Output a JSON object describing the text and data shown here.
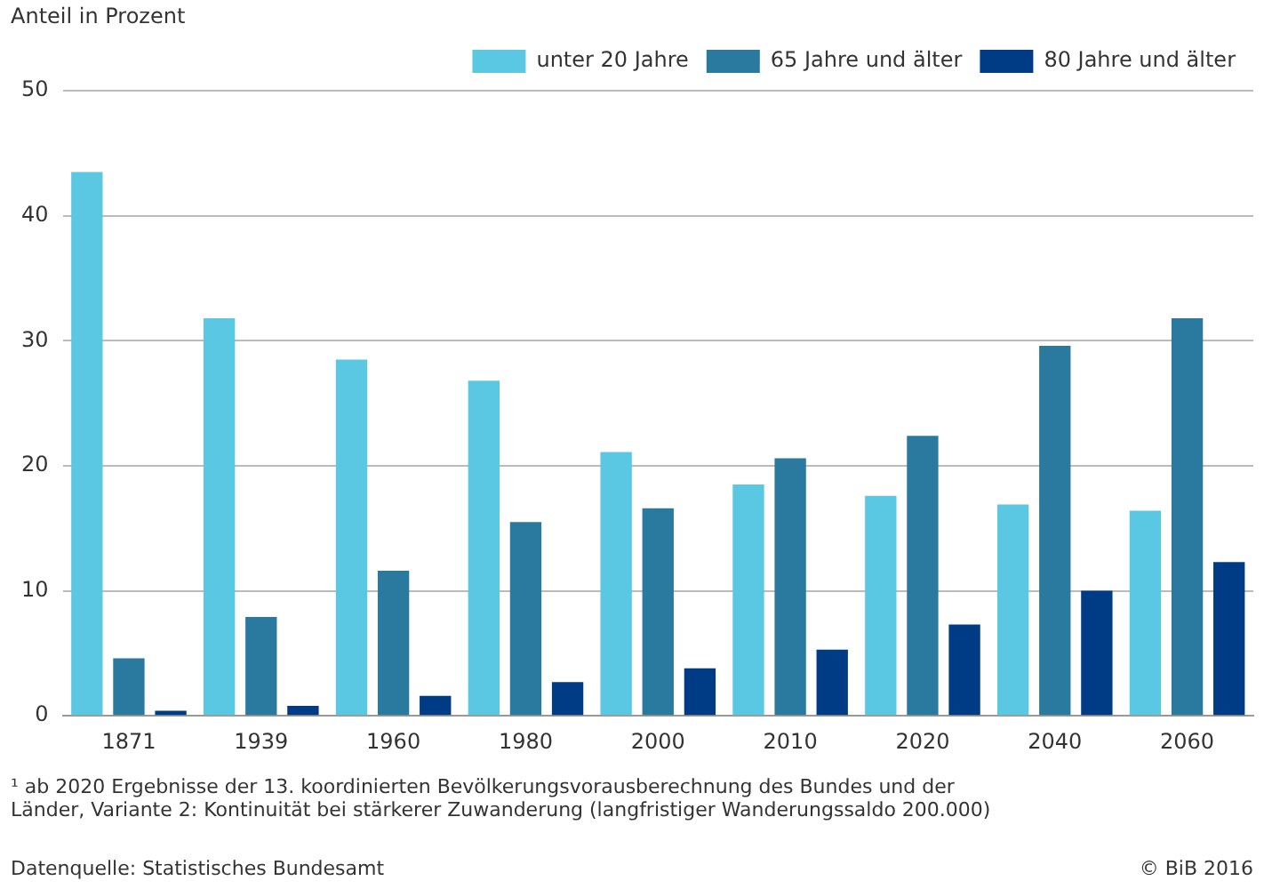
{
  "chart_data": {
    "type": "bar",
    "ylabel": "Anteil in Prozent",
    "categories": [
      "1871",
      "1939",
      "1960",
      "1980",
      "2000",
      "2010",
      "2020",
      "2040",
      "2060"
    ],
    "series": [
      {
        "name": "unter 20 Jahre",
        "color": "#5bc8e3",
        "values": [
          43.5,
          31.8,
          28.5,
          26.8,
          21.1,
          18.5,
          17.6,
          16.9,
          16.4
        ]
      },
      {
        "name": "65 Jahre und älter",
        "color": "#2a7aa0",
        "values": [
          4.6,
          7.9,
          11.6,
          15.5,
          16.6,
          20.6,
          22.4,
          29.6,
          31.8
        ]
      },
      {
        "name": "80 Jahre und älter",
        "color": "#003c85",
        "values": [
          0.4,
          0.8,
          1.6,
          2.7,
          3.8,
          5.3,
          7.3,
          10.0,
          12.3
        ]
      }
    ],
    "ylim": [
      0,
      50
    ],
    "yticks": [
      0,
      10,
      20,
      30,
      40,
      50
    ],
    "grid": "y",
    "legend": "top right",
    "annotations": [
      "¹ ab 2020 Ergebnisse der 13. koordinierten Bevölkerungsvorausberechnung des Bundes und der Länder, Variante 2: Kontinuität bei stärkerer Zuwanderung (langfristiger Wanderungssaldo 200.000)",
      "Datenquelle: Statistisches Bundesamt",
      "© BiB 2016"
    ]
  }
}
